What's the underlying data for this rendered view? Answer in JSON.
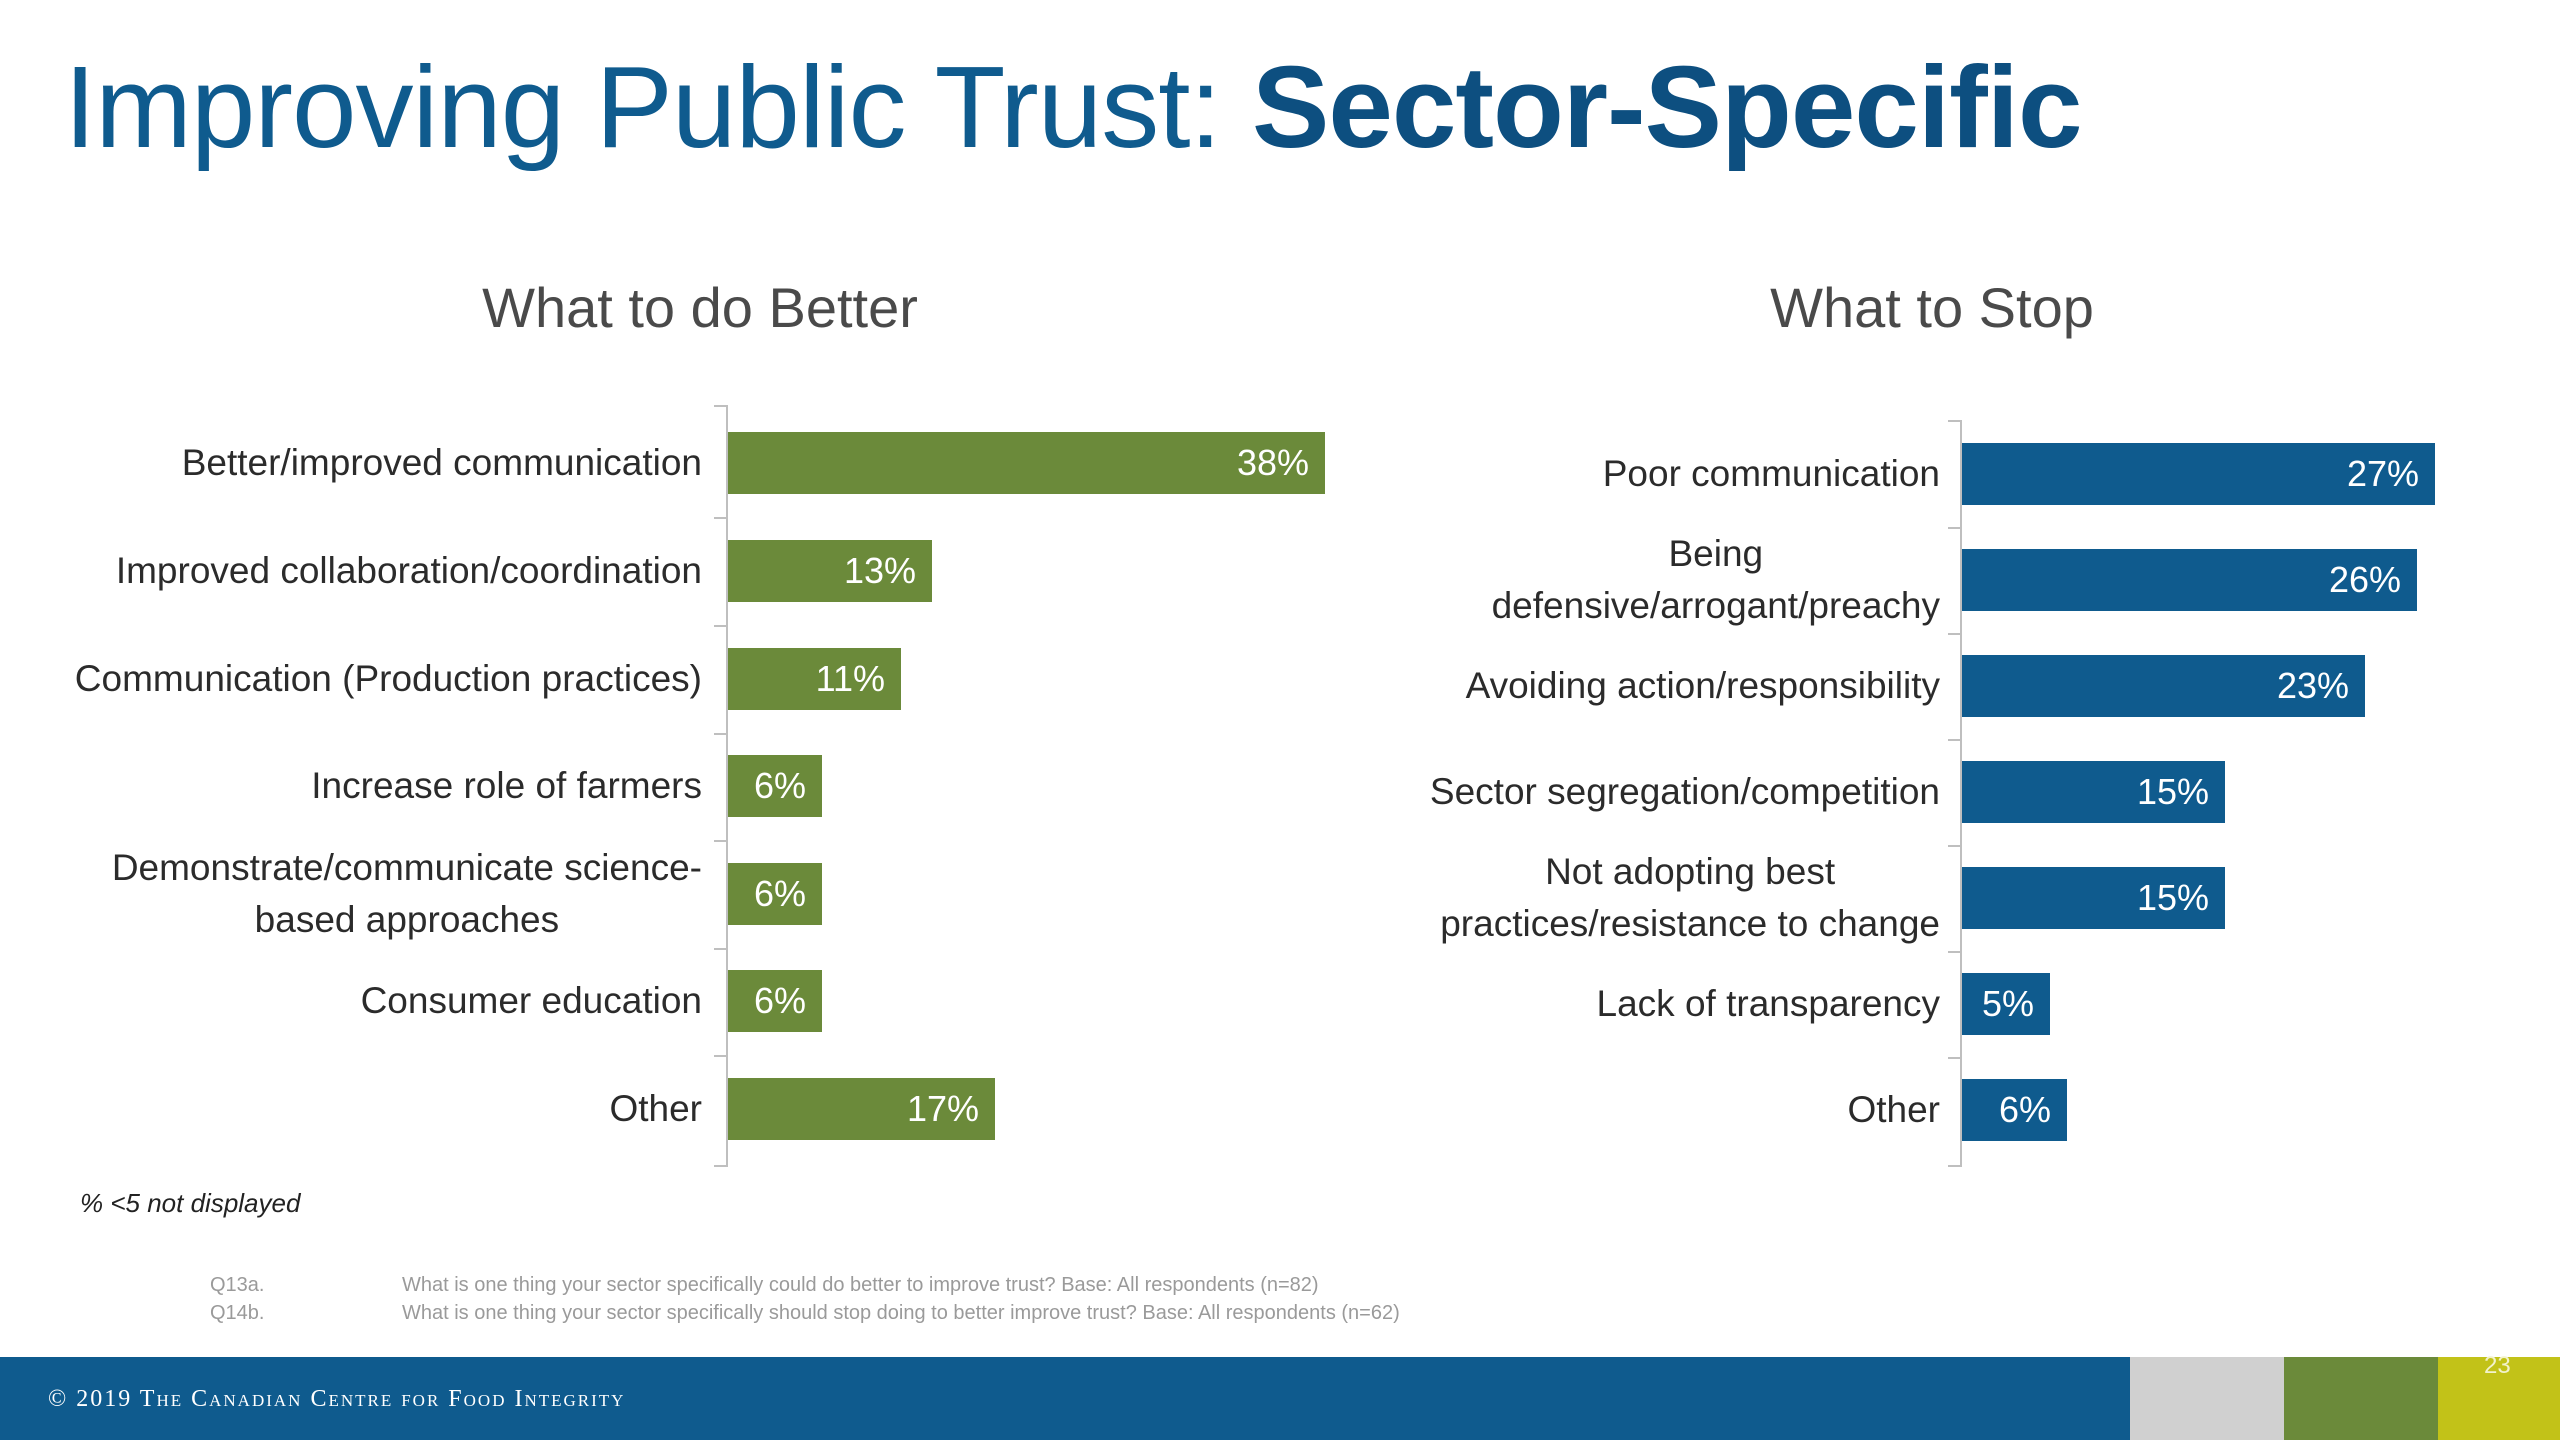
{
  "title": {
    "regular": "Improving Public Trust: ",
    "bold": "Sector-Specific"
  },
  "colors": {
    "better_bar": "#6b8a3a",
    "stop_bar": "#0f5b8e",
    "footer_blue": "#0f5b8e",
    "footer_gray": "#d0d0d0",
    "footer_green": "#6b8a3a",
    "footer_yellow": "#c2c218"
  },
  "chart_data": [
    {
      "type": "bar",
      "orientation": "horizontal",
      "title": "What to do Better",
      "categories": [
        "Better/improved communication",
        "Improved collaboration/coordination",
        "Communication (Production practices)",
        "Increase role of farmers",
        "Demonstrate/communicate science-\nbased approaches",
        "Consumer education",
        "Other"
      ],
      "values": [
        38,
        13,
        11,
        6,
        6,
        6,
        17
      ],
      "value_labels": [
        "38%",
        "13%",
        "11%",
        "6%",
        "6%",
        "6%",
        "17%"
      ],
      "xlim": [
        0,
        40
      ],
      "unit": "%"
    },
    {
      "type": "bar",
      "orientation": "horizontal",
      "title": "What to Stop",
      "categories": [
        "Poor communication",
        "Being\ndefensive/arrogant/preachy",
        "Avoiding action/responsibility",
        "Sector segregation/competition",
        "Not adopting best\npractices/resistance to change",
        "Lack of transparency",
        "Other"
      ],
      "values": [
        27,
        26,
        23,
        15,
        15,
        5,
        6
      ],
      "value_labels": [
        "27%",
        "26%",
        "23%",
        "15%",
        "15%",
        "5%",
        "6%"
      ],
      "xlim": [
        0,
        30
      ],
      "unit": "%"
    }
  ],
  "note": "% <5 not displayed",
  "questions": [
    {
      "code": "Q13a.",
      "text": "What is one thing your sector specifically could do better to improve trust? Base: All respondents (n=82)"
    },
    {
      "code": "Q14b.",
      "text": "What is one thing your sector specifically should stop doing to better improve trust? Base: All respondents (n=62)"
    }
  ],
  "footer": {
    "copyright": "© 2019 The Canadian Centre for Food Integrity",
    "page_number": "23"
  }
}
